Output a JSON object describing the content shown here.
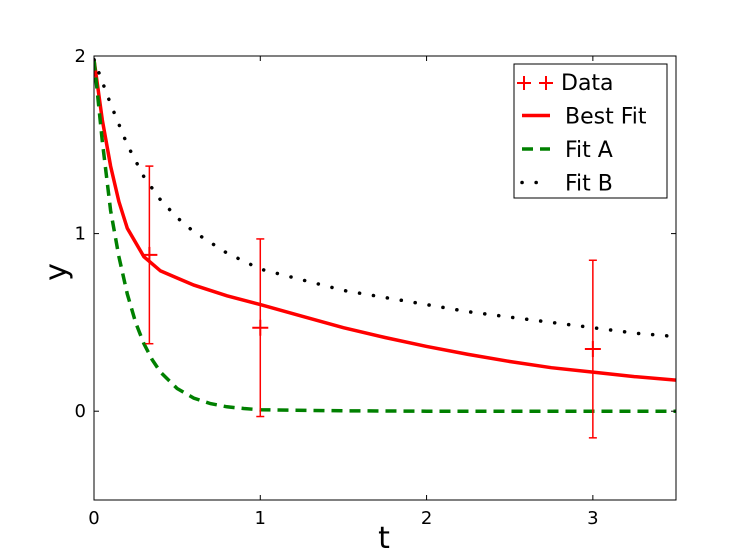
{
  "chart_data": {
    "type": "line",
    "title": "",
    "xlabel": "t",
    "ylabel": "y",
    "xlim": [
      0,
      3.5
    ],
    "ylim": [
      -0.5,
      2
    ],
    "xticks": [
      "0",
      "1",
      "2",
      "3"
    ],
    "yticks": [
      "0",
      "1",
      "2"
    ],
    "grid": false,
    "legend_position": "top-right",
    "colors": {
      "data": "#ff0000",
      "best_fit": "#ff0000",
      "fit_a": "#008000",
      "fit_b": "#000000"
    },
    "data_points": {
      "name": "Data",
      "x": [
        0.333,
        1.0,
        3.0
      ],
      "y": [
        0.88,
        0.47,
        0.35
      ],
      "yerr": [
        0.5,
        0.5,
        0.5
      ]
    },
    "series": [
      {
        "name": "Best Fit",
        "style": "solid",
        "x": [
          0,
          0.05,
          0.1,
          0.15,
          0.2,
          0.3,
          0.4,
          0.5,
          0.6,
          0.8,
          1.0,
          1.25,
          1.5,
          1.75,
          2.0,
          2.25,
          2.5,
          2.75,
          3.0,
          3.25,
          3.5
        ],
        "y": [
          1.98,
          1.64,
          1.38,
          1.18,
          1.03,
          0.87,
          0.79,
          0.75,
          0.71,
          0.65,
          0.6,
          0.535,
          0.47,
          0.415,
          0.365,
          0.32,
          0.28,
          0.245,
          0.22,
          0.195,
          0.175
        ]
      },
      {
        "name": "Fit A",
        "style": "dashed",
        "x": [
          0,
          0.05,
          0.1,
          0.15,
          0.2,
          0.25,
          0.3,
          0.35,
          0.4,
          0.5,
          0.6,
          0.7,
          0.8,
          0.9,
          1.0,
          1.5,
          2.0,
          2.5,
          3.0,
          3.5
        ],
        "y": [
          1.98,
          1.52,
          1.13,
          0.87,
          0.66,
          0.5,
          0.38,
          0.29,
          0.22,
          0.128,
          0.074,
          0.043,
          0.025,
          0.015,
          0.008,
          0.002,
          0,
          0,
          0,
          0
        ],
        "trend": "fast decay to 0"
      },
      {
        "name": "Fit B",
        "style": "dotted",
        "x": [
          0,
          0.1,
          0.2,
          0.3,
          0.4,
          0.5,
          0.6,
          0.8,
          1.0,
          1.25,
          1.5,
          1.75,
          2.0,
          2.25,
          2.5,
          2.75,
          3.0,
          3.25,
          3.5
        ],
        "y": [
          1.98,
          1.73,
          1.5,
          1.32,
          1.19,
          1.09,
          1.01,
          0.89,
          0.8,
          0.74,
          0.68,
          0.64,
          0.6,
          0.56,
          0.53,
          0.5,
          0.47,
          0.44,
          0.42
        ]
      }
    ]
  }
}
